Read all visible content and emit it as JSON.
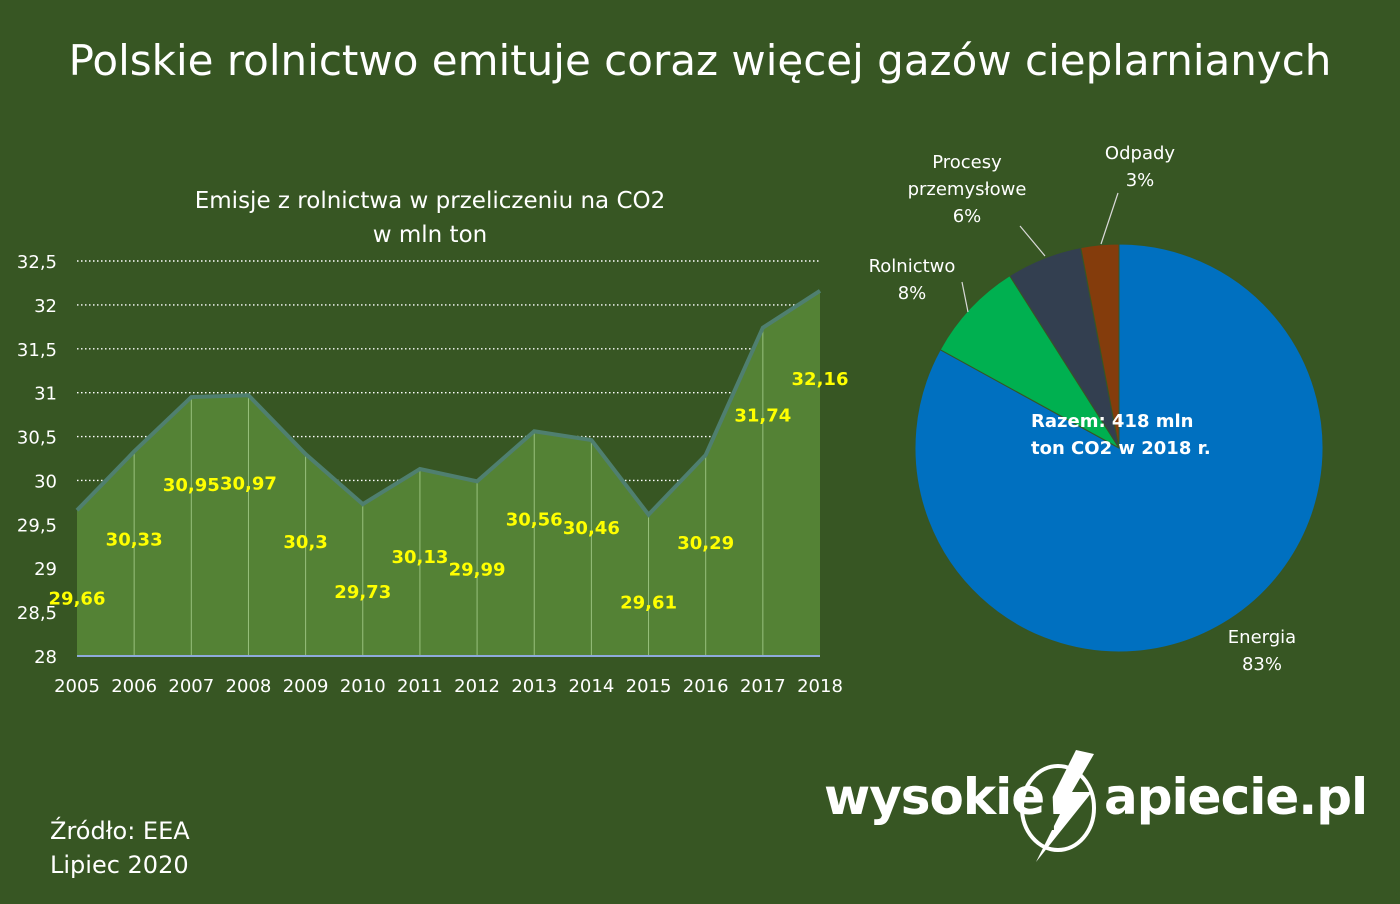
{
  "header": {
    "title": "Polskie rolnictwo emituje coraz więcej gazów cieplarnianych"
  },
  "chart_data": [
    {
      "type": "area",
      "title": "Emisje z rolnictwa w przeliczeniu na CO2",
      "subtitle": "w mln ton",
      "x": [
        "2005",
        "2006",
        "2007",
        "2008",
        "2009",
        "2010",
        "2011",
        "2012",
        "2013",
        "2014",
        "2015",
        "2016",
        "2017",
        "2018"
      ],
      "values": [
        29.66,
        30.33,
        30.95,
        30.97,
        30.3,
        29.73,
        30.13,
        29.99,
        30.56,
        30.46,
        29.61,
        30.29,
        31.74,
        32.16
      ],
      "data_labels": [
        "29,66",
        "30,33",
        "30,95",
        "30,97",
        "30,3",
        "29,73",
        "30,13",
        "29,99",
        "30,56",
        "30,46",
        "29,61",
        "30,29",
        "31,74",
        "32,16"
      ],
      "ylim": [
        28,
        32.5
      ],
      "yticks": [
        28,
        28.5,
        29,
        29.5,
        30,
        30.5,
        31,
        31.5,
        32,
        32.5
      ],
      "ytick_labels": [
        "28",
        "28,5",
        "29",
        "29,5",
        "30",
        "30,5",
        "31",
        "31,5",
        "32",
        "32,5"
      ],
      "grid": "dotted horizontal",
      "colors": {
        "fill": "#548235",
        "line": "#4f7f6f",
        "labels": "#ffff00"
      }
    },
    {
      "type": "pie",
      "center_label": [
        "Razem: 418 mln",
        "ton CO2 w 2018 r."
      ],
      "slices": [
        {
          "label": [
            "Energia"
          ],
          "value": 83,
          "value_label": "83%",
          "color": "#0070c0"
        },
        {
          "label": [
            "Rolnictwo"
          ],
          "value": 8,
          "value_label": "8%",
          "color": "#00b050"
        },
        {
          "label": [
            "Procesy",
            "przemysłowe"
          ],
          "value": 6,
          "value_label": "6%",
          "color": "#333f50"
        },
        {
          "label": [
            "Odpady"
          ],
          "value": 3,
          "value_label": "3%",
          "color": "#843c0c"
        }
      ]
    }
  ],
  "footer": {
    "source": "Źródło: EEA",
    "date": "Lipiec 2020"
  },
  "logo": {
    "left": "wysokie",
    "right": "apiecie.pl"
  }
}
